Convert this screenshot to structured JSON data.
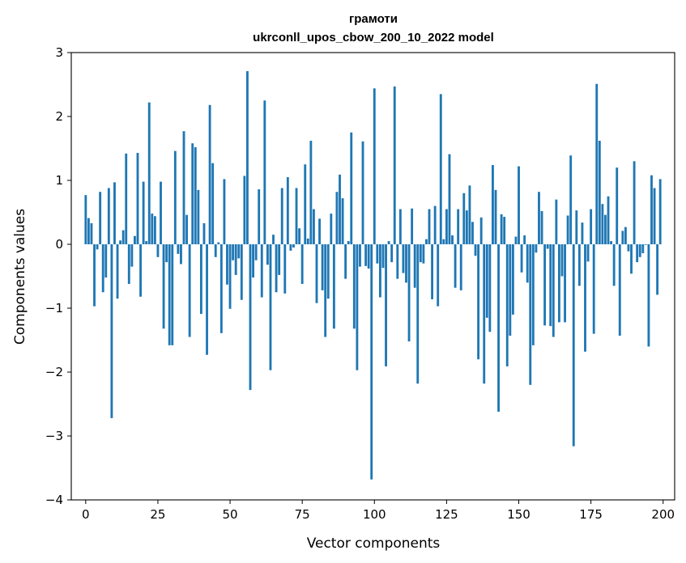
{
  "chart_data": {
    "type": "bar",
    "title": "грамоти",
    "subtitle": "ukrconll_upos_cbow_200_10_2022 model",
    "xlabel": "Vector components",
    "ylabel": "Components values",
    "xlim": [
      -5,
      204
    ],
    "ylim": [
      -4,
      3
    ],
    "xticks": [
      0,
      25,
      50,
      75,
      100,
      125,
      150,
      175,
      200
    ],
    "xtick_labels": [
      "0",
      "25",
      "50",
      "75",
      "100",
      "125",
      "150",
      "175",
      "200"
    ],
    "yticks": [
      -4,
      -3,
      -2,
      -1,
      0,
      1,
      2,
      3
    ],
    "ytick_labels": [
      "−4",
      "−3",
      "−2",
      "−1",
      "0",
      "1",
      "2",
      "3"
    ],
    "grid": false,
    "bar_color": "#1f77b4",
    "values": [
      0.77,
      0.41,
      0.33,
      -0.97,
      -0.08,
      0.82,
      -0.75,
      -0.52,
      0.88,
      -2.72,
      0.97,
      -0.85,
      0.06,
      0.22,
      1.42,
      -0.62,
      -0.35,
      0.13,
      1.43,
      -0.82,
      0.98,
      0.05,
      2.22,
      0.48,
      0.44,
      -0.2,
      0.98,
      -1.32,
      -0.28,
      -1.58,
      -1.58,
      1.46,
      -0.15,
      -0.31,
      1.77,
      0.46,
      -1.45,
      1.58,
      1.52,
      0.85,
      -1.09,
      0.33,
      -1.73,
      2.18,
      1.27,
      -0.2,
      0.03,
      -1.39,
      1.02,
      -0.63,
      -1.01,
      -0.25,
      -0.48,
      -0.22,
      -0.87,
      1.07,
      2.71,
      -2.28,
      -0.52,
      -0.25,
      0.86,
      -0.83,
      2.25,
      -0.32,
      -1.97,
      0.15,
      -0.75,
      -0.48,
      0.88,
      -0.77,
      1.05,
      -0.1,
      -0.05,
      0.88,
      0.25,
      -0.62,
      1.25,
      0.09,
      1.62,
      0.55,
      -0.92,
      0.4,
      -0.72,
      -1.45,
      -0.85,
      0.48,
      -1.32,
      0.82,
      1.09,
      0.72,
      -0.54,
      0.05,
      1.75,
      -1.32,
      -1.97,
      -0.35,
      1.61,
      -0.34,
      -0.38,
      -3.68,
      2.44,
      -0.3,
      -0.83,
      -0.37,
      -1.91,
      0.05,
      -0.28,
      2.47,
      -0.54,
      0.55,
      -0.45,
      -0.6,
      -1.52,
      0.56,
      -0.68,
      -2.18,
      -0.28,
      -0.3,
      0.08,
      0.55,
      -0.86,
      0.6,
      -0.97,
      2.35,
      0.08,
      0.55,
      1.41,
      0.14,
      -0.68,
      0.55,
      -0.72,
      0.8,
      0.53,
      0.92,
      0.35,
      -0.18,
      -1.8,
      0.42,
      -2.18,
      -1.15,
      -1.37,
      1.24,
      0.85,
      -2.62,
      0.47,
      0.43,
      -1.91,
      -1.43,
      -1.1,
      0.12,
      1.22,
      -0.44,
      0.14,
      -0.6,
      -2.2,
      -1.58,
      -0.13,
      0.82,
      0.52,
      -1.27,
      -0.07,
      -1.28,
      -1.45,
      0.7,
      -1.22,
      -0.5,
      -1.22,
      0.45,
      1.39,
      -3.16,
      0.53,
      -0.65,
      0.34,
      -1.68,
      -0.27,
      0.55,
      -1.4,
      2.51,
      1.62,
      0.63,
      0.46,
      0.75,
      0.05,
      -0.65,
      1.2,
      -1.43,
      0.21,
      0.27,
      -0.11,
      -0.46,
      1.3,
      -0.28,
      -0.2,
      -0.14,
      -0.01,
      -1.6,
      1.08,
      0.88,
      -0.79,
      1.02
    ]
  }
}
